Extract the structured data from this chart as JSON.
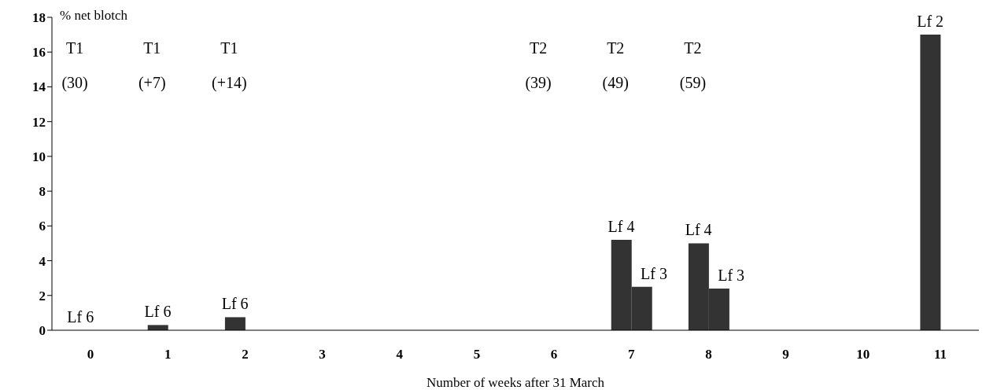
{
  "chart_data": {
    "type": "bar",
    "ylabel": "% net blotch",
    "xlabel": "Number of weeks after 31 March",
    "categories": [
      "0",
      "1",
      "2",
      "3",
      "4",
      "5",
      "6",
      "7",
      "8",
      "9",
      "10",
      "11"
    ],
    "series": [
      {
        "color": "#333333",
        "values": [
          0,
          0.3,
          0.75,
          null,
          null,
          null,
          null,
          5.2,
          5.0,
          null,
          null,
          17
        ],
        "value_labels": [
          "Lf 6",
          "Lf 6",
          "Lf 6",
          null,
          null,
          null,
          null,
          "Lf 4",
          "Lf 4",
          null,
          null,
          "Lf 2"
        ]
      },
      {
        "color": "#333333",
        "values": [
          null,
          null,
          null,
          null,
          null,
          null,
          null,
          2.5,
          2.4,
          null,
          null,
          null
        ],
        "value_labels": [
          null,
          null,
          null,
          null,
          null,
          null,
          null,
          "Lf 3",
          "Lf 3",
          null,
          null,
          null
        ]
      }
    ],
    "ylim": [
      0,
      18
    ],
    "yticks": [
      0,
      2,
      4,
      6,
      8,
      10,
      12,
      14,
      16,
      18
    ],
    "grid": false,
    "legend": false,
    "annotations": [
      "T1",
      "(30)",
      "T1",
      "(+7)",
      "T1",
      "(+14)",
      "T2",
      "(39)",
      "T2",
      "(49)",
      "T2",
      "(59)"
    ]
  }
}
